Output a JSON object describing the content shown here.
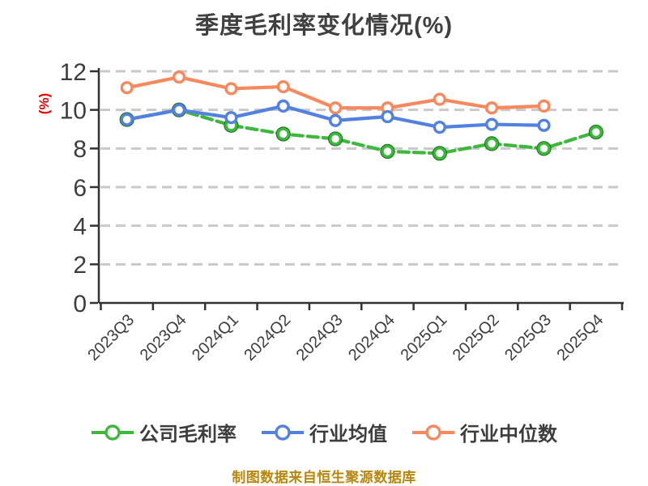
{
  "page": {
    "background": "#ffffff",
    "caption": "制图数据来自恒生聚源数据库",
    "caption_color": "#b8860b"
  },
  "chart_data": {
    "type": "line",
    "title": "季度毛利率变化情况(%)",
    "title_color": "#404040",
    "ylabel": "(%)",
    "ylabel_color": "#ee0000",
    "xlabel": "",
    "categories": [
      "2023Q3",
      "2023Q4",
      "2024Q1",
      "2024Q2",
      "2024Q3",
      "2024Q4",
      "2025Q1",
      "2025Q2",
      "2025Q3",
      "2025Q4"
    ],
    "series": [
      {
        "name": "公司毛利率",
        "color": "#3db83d",
        "edge_color": "#1a6b1a",
        "line_style": "dashed",
        "values": [
          9.5,
          10.0,
          9.2,
          8.75,
          8.5,
          7.85,
          7.75,
          8.25,
          8.0,
          8.85
        ]
      },
      {
        "name": "行业均值",
        "color": "#5381e0",
        "line_style": "solid",
        "values": [
          9.5,
          10.0,
          9.6,
          10.2,
          9.45,
          9.65,
          9.1,
          9.25,
          9.2,
          null
        ]
      },
      {
        "name": "行业中位数",
        "color": "#f8885e",
        "line_style": "solid",
        "values": [
          11.15,
          11.7,
          11.1,
          11.2,
          10.1,
          10.1,
          10.55,
          10.1,
          10.2,
          null
        ]
      }
    ],
    "ylim": [
      0,
      12
    ],
    "ytick_step": 2,
    "xlabel_rotation": 45,
    "grid": "horizontal-dashed",
    "grid_color": "#c9c9c9",
    "axis_color": "#333333",
    "tick_label_color": "#3d3d3d",
    "legend_position": "bottom",
    "marker": "circle-white-filled"
  }
}
